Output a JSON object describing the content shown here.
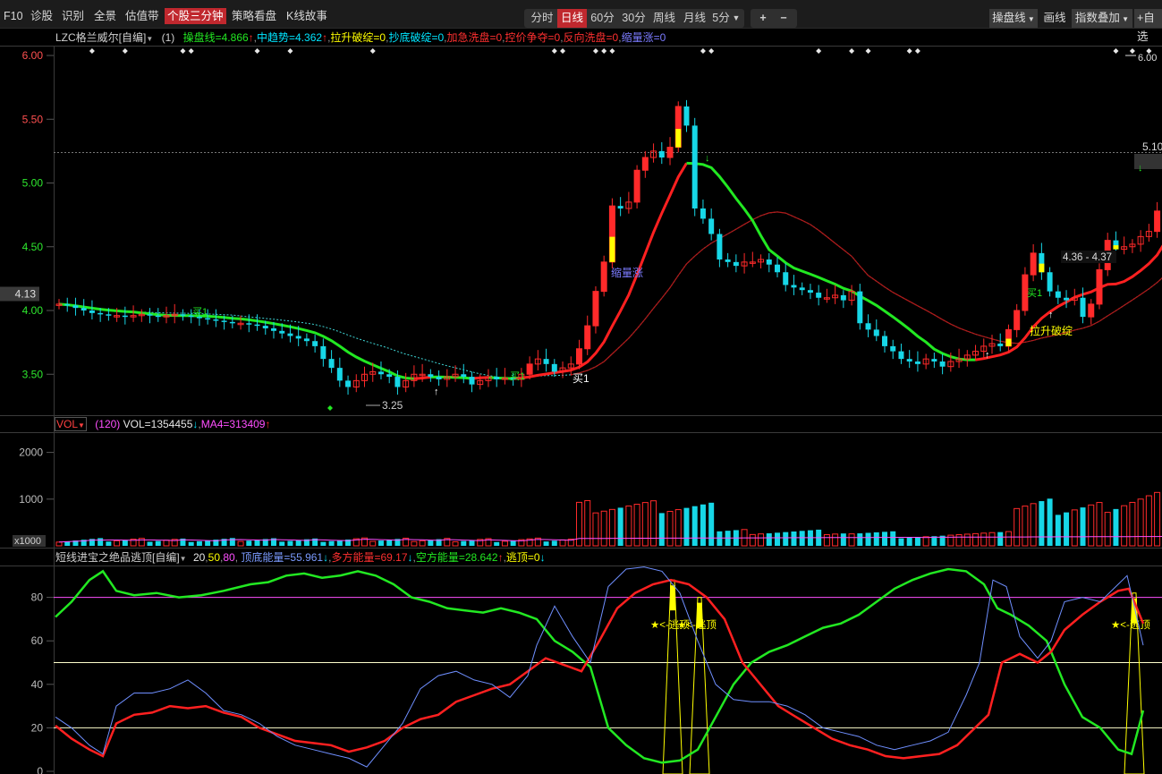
{
  "topbar": {
    "f10": "F10",
    "nav": [
      "诊股",
      "识别",
      "全景",
      "估值带",
      "个股三分钟",
      "策略看盘",
      "K线故事"
    ],
    "active_nav_index": 4,
    "periods": [
      "分时",
      "日线",
      "60分",
      "30分",
      "周线",
      "月线",
      "5分"
    ],
    "active_period_index": 1,
    "zoom_in": "+",
    "zoom_out": "−",
    "indicator_select": "操盘线",
    "draw_label": "画线",
    "overlay_select": "指数叠加",
    "custom_label": "+自选"
  },
  "main_info": {
    "name": "LZC格兰威尔[自编]",
    "param": "(1)",
    "items": [
      {
        "text": "操盘线=4.866",
        "color": "#22e822",
        "arrow": "↑",
        "arrow_color": "#ff3030"
      },
      {
        "text": "中趋势=4.362",
        "color": "#00e5ff",
        "arrow": "↑",
        "arrow_color": "#ff3030"
      },
      {
        "text": "拉升破绽=0",
        "color": "#ffff00",
        "arrow": "",
        "arrow_color": ""
      },
      {
        "text": "抄底破绽=0",
        "color": "#00e5ff",
        "arrow": "",
        "arrow_color": ""
      },
      {
        "text": "加急洗盘=0",
        "color": "#ff3030",
        "arrow": "",
        "arrow_color": ""
      },
      {
        "text": "控价争夺=0",
        "color": "#ff3030",
        "arrow": "",
        "arrow_color": ""
      },
      {
        "text": "反向洗盘=0",
        "color": "#ff3030",
        "arrow": "",
        "arrow_color": ""
      },
      {
        "text": "缩量涨=0",
        "color": "#7b7bff",
        "arrow": "",
        "arrow_color": ""
      }
    ]
  },
  "price_axis": {
    "ticks": [
      "6.00",
      "5.50",
      "5.00",
      "4.50",
      "4.00",
      "3.50"
    ],
    "current_marker": "4.13",
    "right_labels": [
      "6.00",
      "5.10"
    ]
  },
  "price_annotations": {
    "low_label": "3.25",
    "range_label": "4.36 - 4.37",
    "buy_labels": [
      "买1",
      "买1",
      "买1",
      "买1"
    ],
    "shrink_label": "缩量涨",
    "pull_label": "拉升破绽"
  },
  "vol_info": {
    "name": "VOL",
    "param": "(120)",
    "vol_text": "VOL=1354455",
    "vol_arrow": "↓",
    "ma_text": "MA4=313409",
    "ma_arrow": "↑"
  },
  "vol_axis": {
    "ticks": [
      "2000",
      "1000"
    ],
    "unit": "x1000"
  },
  "osc_info": {
    "name": "短线进宝之绝品逃顶[自编]",
    "params": [
      "20",
      "50",
      "80"
    ],
    "items": [
      {
        "text": "顶底能量=55.961",
        "color": "#7b9bff",
        "arrow": "↓",
        "arrow_color": "#00e5ff"
      },
      {
        "text": "多方能量=69.17",
        "color": "#ff3030",
        "arrow": "↓",
        "arrow_color": "#00e5ff"
      },
      {
        "text": "空方能量=28.642",
        "color": "#22e822",
        "arrow": "↑",
        "arrow_color": "#ff3030"
      },
      {
        "text": "逃顶=0",
        "color": "#ffff00",
        "arrow": "↓",
        "arrow_color": "#00e5ff"
      }
    ]
  },
  "osc_axis": {
    "ticks": [
      "80",
      "60",
      "40",
      "20",
      "0"
    ]
  },
  "osc_annotations": {
    "escape_labels": [
      "★<-逃顶",
      "★<-逃顶",
      "★<-逃顶"
    ]
  },
  "colors": {
    "up": "#ff2a2a",
    "down": "#17d7e7",
    "ma_green": "#22e822",
    "trend_red": "#ff2020",
    "yellow": "#ffff00"
  }
}
